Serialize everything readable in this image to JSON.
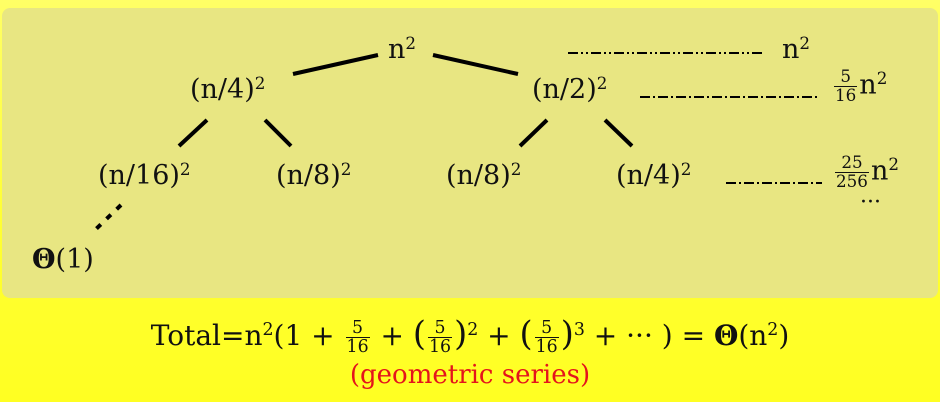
{
  "tree": {
    "root": {
      "base": "n",
      "exp": "2"
    },
    "level1": [
      {
        "base": "(n/4)",
        "exp": "2"
      },
      {
        "base": "(n/2)",
        "exp": "2"
      }
    ],
    "level2": [
      {
        "base": "(n/16)",
        "exp": "2"
      },
      {
        "base": "(n/8)",
        "exp": "2"
      },
      {
        "base": "(n/8)",
        "exp": "2"
      },
      {
        "base": "(n/4)",
        "exp": "2"
      }
    ],
    "leaf": {
      "theta": "Θ",
      "arg": "(1)"
    }
  },
  "level_sums": [
    {
      "coef_num": "",
      "coef_den": "",
      "base": "n",
      "exp": "2"
    },
    {
      "coef_num": "5",
      "coef_den": "16",
      "base": "n",
      "exp": "2"
    },
    {
      "coef_num": "25",
      "coef_den": "256",
      "base": "n",
      "exp": "2"
    }
  ],
  "continuation": "···",
  "total": {
    "label": "Total=",
    "n": "n",
    "exp2": "2",
    "open": "(1 + ",
    "frac_num": "5",
    "frac_den": "16",
    "plus": " + ",
    "sq": "2",
    "cube": "3",
    "tail": " + ··· ) = ",
    "theta": "Θ",
    "result": "(n",
    "result_exp": "2",
    "result_close": ")"
  },
  "note": "(geometric series)",
  "colors": {
    "note": "#e4141c",
    "panel": "#e8e682",
    "background": "#ffff33"
  }
}
